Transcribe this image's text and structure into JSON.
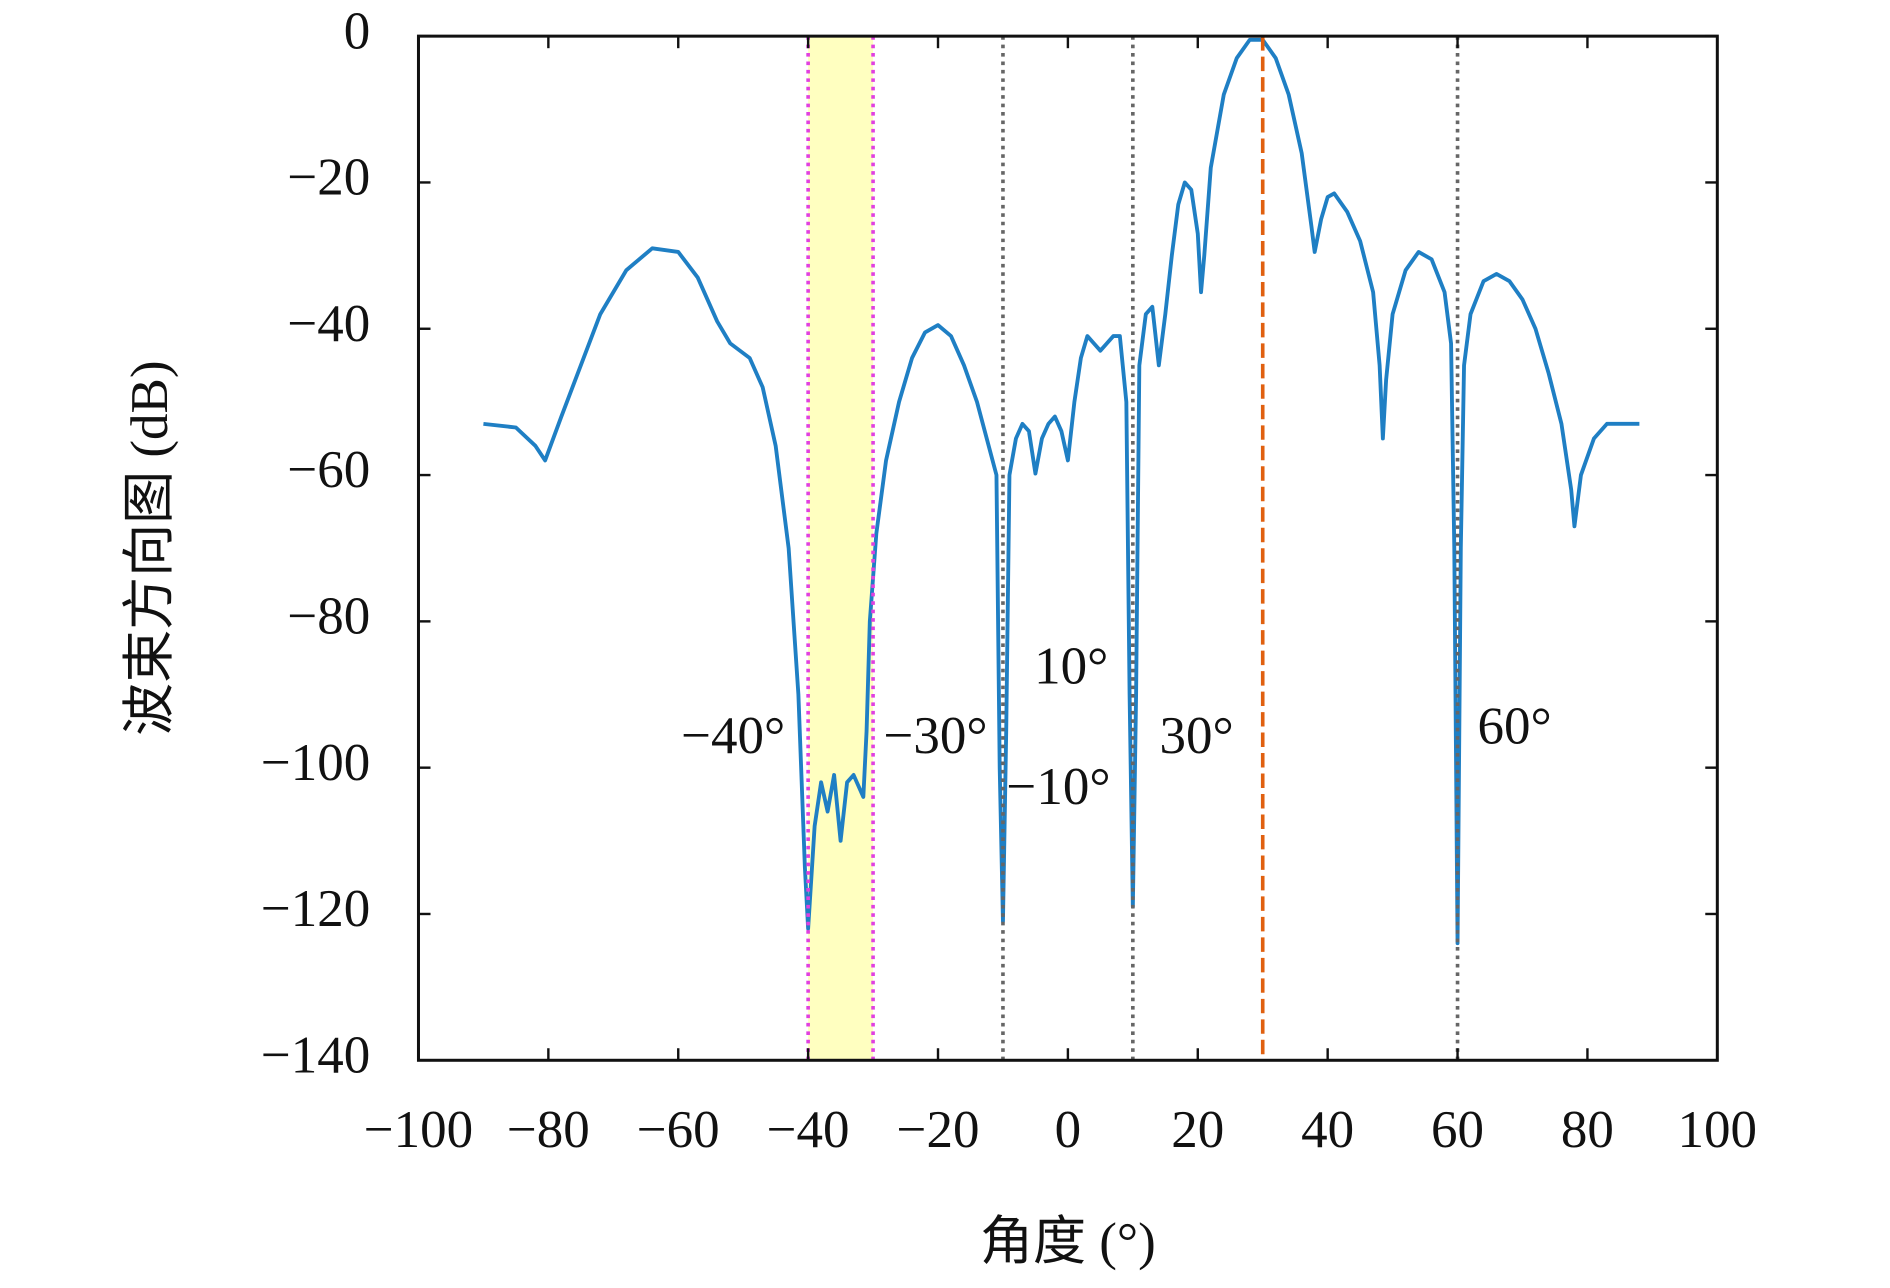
{
  "chart_data": {
    "type": "line",
    "xlabel": "角度 (°)",
    "ylabel": "波束方向图 (dB)",
    "xlim": [
      -100,
      100
    ],
    "ylim": [
      -140,
      0
    ],
    "xticks": [
      {
        "value": -100,
        "label": "−100"
      },
      {
        "value": -80,
        "label": "−80"
      },
      {
        "value": -60,
        "label": "−60"
      },
      {
        "value": -40,
        "label": "−40"
      },
      {
        "value": -20,
        "label": "−20"
      },
      0,
      20,
      40,
      60,
      80,
      100
    ],
    "yticks": [
      0,
      {
        "value": -20,
        "label": "−20"
      },
      {
        "value": -40,
        "label": "−40"
      },
      {
        "value": -60,
        "label": "−60"
      },
      {
        "value": -80,
        "label": "−80"
      },
      {
        "value": -100,
        "label": "−100"
      },
      {
        "value": -120,
        "label": "−120"
      },
      {
        "value": -140,
        "label": "−140"
      }
    ],
    "x": [
      -90,
      -85,
      -82,
      -80.5,
      -78,
      -75,
      -72,
      -68,
      -64,
      -60,
      -57,
      -54,
      -52,
      -49,
      -47,
      -45,
      -43,
      -41.5,
      -40.5,
      -40,
      -39,
      -38,
      -37,
      -36,
      -35,
      -34,
      -33,
      -31.5,
      -31,
      -30.5,
      -29.5,
      -28,
      -26,
      -24,
      -22,
      -20,
      -18,
      -16,
      -14,
      -12.5,
      -11,
      -10.5,
      -10,
      -9.5,
      -9,
      -8,
      -7,
      -6,
      -5,
      -4,
      -3,
      -2,
      -1,
      0,
      1,
      2,
      3,
      4,
      5,
      6,
      7,
      8,
      9,
      9.5,
      10,
      10.5,
      11,
      12,
      13,
      14,
      15,
      16,
      17,
      18,
      19,
      20,
      20.5,
      21,
      22,
      24,
      26,
      28,
      30,
      32,
      34,
      36,
      37.5,
      38,
      39,
      40,
      41,
      43,
      45,
      47,
      48,
      48.5,
      49,
      50,
      52,
      54,
      56,
      58,
      59,
      59.5,
      60,
      60.5,
      61,
      62,
      64,
      66,
      68,
      70,
      72,
      74,
      76,
      77.5,
      78,
      79,
      81,
      83,
      85,
      88
    ],
    "series": [
      {
        "color": "#1f7fc4",
        "values": [
          -53,
          -53.5,
          -56,
          -58,
          -52,
          -45,
          -38,
          -32,
          -29,
          -29.5,
          -33,
          -39,
          -42,
          -44,
          -48,
          -56,
          -70,
          -90,
          -113.6,
          -122,
          -108,
          -102,
          -106,
          -101,
          -110,
          -102,
          -101,
          -104,
          -95,
          -80,
          -68,
          -58,
          -50,
          -44,
          -40.5,
          -39.5,
          -41,
          -45,
          -50,
          -55,
          -60,
          -100,
          -121,
          -95,
          -60,
          -55,
          -53,
          -54,
          -59.8,
          -55,
          -53,
          -52,
          -54,
          -58,
          -50,
          -44,
          -41,
          -42,
          -43,
          -42,
          -41,
          -41,
          -50,
          -90,
          -119,
          -90,
          -45,
          -38,
          -37,
          -45,
          -38,
          -30,
          -23,
          -20,
          -21,
          -27,
          -35,
          -30,
          -18,
          -8,
          -3,
          -0.5,
          -0.5,
          -3,
          -8,
          -16,
          -26,
          -29.5,
          -25,
          -22,
          -21.5,
          -24,
          -28,
          -35,
          -45,
          -55,
          -47,
          -38,
          -32,
          -29.5,
          -30.5,
          -35,
          -42,
          -70,
          -124,
          -70,
          -45,
          -38,
          -33.5,
          -32.5,
          -33.5,
          -36,
          -40,
          -46,
          -53,
          -62,
          -67,
          -60,
          -55,
          -53,
          -53,
          -53
        ]
      }
    ],
    "highlight": [
      -40,
      -30
    ],
    "highlight_color": "#ffffc0",
    "markers": [
      {
        "x": -40,
        "color": "#e040e0",
        "style": "dotted"
      },
      {
        "x": -30,
        "color": "#e040e0",
        "style": "dotted"
      },
      {
        "x": -10,
        "color": "#666666",
        "style": "dotted"
      },
      {
        "x": 10,
        "color": "#666666",
        "style": "dotted"
      },
      {
        "x": 30,
        "color": "#e06010",
        "style": "dashed"
      },
      {
        "x": 60,
        "color": "#666666",
        "style": "dotted"
      }
    ],
    "annotations": [
      "−40°",
      "−30°",
      "10°",
      "−10°",
      "30°",
      "60°"
    ]
  }
}
